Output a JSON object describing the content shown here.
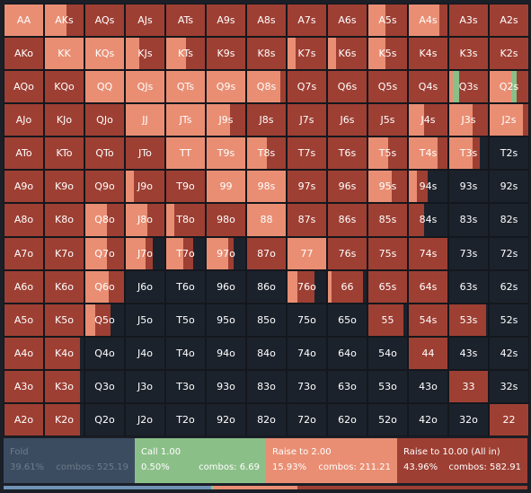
{
  "colors": {
    "fold": "#1c222c",
    "call": "#8bbf88",
    "raise_small": "#e98e73",
    "raise_allin": "#9e3f33"
  },
  "hands": [
    [
      "AA",
      "AKs",
      "AQs",
      "AJs",
      "ATs",
      "A9s",
      "A8s",
      "A7s",
      "A6s",
      "A5s",
      "A4s",
      "A3s",
      "A2s"
    ],
    [
      "AKo",
      "KK",
      "KQs",
      "KJs",
      "KTs",
      "K9s",
      "K8s",
      "K7s",
      "K6s",
      "K5s",
      "K4s",
      "K3s",
      "K2s"
    ],
    [
      "AQo",
      "KQo",
      "QQ",
      "QJs",
      "QTs",
      "Q9s",
      "Q8s",
      "Q7s",
      "Q6s",
      "Q5s",
      "Q4s",
      "Q3s",
      "Q2s"
    ],
    [
      "AJo",
      "KJo",
      "QJo",
      "JJ",
      "JTs",
      "J9s",
      "J8s",
      "J7s",
      "J6s",
      "J5s",
      "J4s",
      "J3s",
      "J2s"
    ],
    [
      "ATo",
      "KTo",
      "QTo",
      "JTo",
      "TT",
      "T9s",
      "T8s",
      "T7s",
      "T6s",
      "T5s",
      "T4s",
      "T3s",
      "T2s"
    ],
    [
      "A9o",
      "K9o",
      "Q9o",
      "J9o",
      "T9o",
      "99",
      "98s",
      "97s",
      "96s",
      "95s",
      "94s",
      "93s",
      "92s"
    ],
    [
      "A8o",
      "K8o",
      "Q8o",
      "J8o",
      "T8o",
      "98o",
      "88",
      "87s",
      "86s",
      "85s",
      "84s",
      "83s",
      "82s"
    ],
    [
      "A7o",
      "K7o",
      "Q7o",
      "J7o",
      "T7o",
      "97o",
      "87o",
      "77",
      "76s",
      "75s",
      "74s",
      "73s",
      "72s"
    ],
    [
      "A6o",
      "K6o",
      "Q6o",
      "J6o",
      "T6o",
      "96o",
      "86o",
      "76o",
      "66",
      "65s",
      "64s",
      "63s",
      "62s"
    ],
    [
      "A5o",
      "K5o",
      "Q5o",
      "J5o",
      "T5o",
      "95o",
      "85o",
      "75o",
      "65o",
      "55",
      "54s",
      "53s",
      "52s"
    ],
    [
      "A4o",
      "K4o",
      "Q4o",
      "J4o",
      "T4o",
      "94o",
      "84o",
      "74o",
      "64o",
      "54o",
      "44",
      "43s",
      "42s"
    ],
    [
      "A3o",
      "K3o",
      "Q3o",
      "J3o",
      "T3o",
      "93o",
      "83o",
      "73o",
      "63o",
      "53o",
      "43o",
      "33",
      "32s"
    ],
    [
      "A2o",
      "K2o",
      "Q2o",
      "J2o",
      "T2o",
      "92o",
      "82o",
      "72o",
      "62o",
      "52o",
      "42o",
      "32o",
      "22"
    ]
  ],
  "strategy_mix": [
    [
      [
        0,
        0,
        1,
        0
      ],
      [
        0,
        0,
        0.55,
        0.45
      ],
      [
        0,
        0,
        0,
        1
      ],
      [
        0,
        0,
        0,
        1
      ],
      [
        0,
        0,
        0,
        1
      ],
      [
        0,
        0,
        0,
        1
      ],
      [
        0,
        0,
        0,
        1
      ],
      [
        0,
        0,
        0,
        1
      ],
      [
        0,
        0,
        0,
        1
      ],
      [
        0,
        0,
        0.45,
        0.55
      ],
      [
        0,
        0,
        0.8,
        0.2
      ],
      [
        0,
        0,
        0,
        1
      ],
      [
        0,
        0,
        0,
        1
      ]
    ],
    [
      [
        0,
        0,
        0,
        1
      ],
      [
        0,
        0,
        1,
        0
      ],
      [
        0,
        0,
        1,
        0
      ],
      [
        0,
        0,
        0.35,
        0.65
      ],
      [
        0,
        0,
        0.5,
        0.5
      ],
      [
        0,
        0,
        0,
        1
      ],
      [
        0,
        0,
        0,
        1
      ],
      [
        0,
        0,
        0.2,
        0.8
      ],
      [
        0,
        0,
        0.2,
        0.8
      ],
      [
        0,
        0,
        0.45,
        0.55
      ],
      [
        0,
        0,
        0,
        1
      ],
      [
        0,
        0,
        0,
        1
      ],
      [
        0,
        0,
        0,
        1
      ]
    ],
    [
      [
        0,
        0,
        0,
        1
      ],
      [
        0,
        0,
        0,
        1
      ],
      [
        0,
        0,
        1,
        0
      ],
      [
        0,
        0,
        1,
        0
      ],
      [
        0,
        0,
        1,
        0
      ],
      [
        0,
        0,
        1,
        0
      ],
      [
        0,
        0,
        0.85,
        0.15
      ],
      [
        0,
        0,
        0,
        1
      ],
      [
        0,
        0,
        0,
        1
      ],
      [
        0,
        0,
        0,
        1
      ],
      [
        0,
        0,
        0,
        1
      ],
      [
        0,
        0.15,
        0.1,
        0.75
      ],
      [
        0,
        0.15,
        0.55,
        0.3
      ]
    ],
    [
      [
        0,
        0,
        0,
        1
      ],
      [
        0,
        0,
        0,
        1
      ],
      [
        0,
        0,
        0,
        1
      ],
      [
        0,
        0,
        1,
        0
      ],
      [
        0,
        0,
        1,
        0
      ],
      [
        0,
        0,
        0.6,
        0.4
      ],
      [
        0,
        0,
        0,
        1
      ],
      [
        0,
        0,
        0,
        1
      ],
      [
        0,
        0,
        0,
        1
      ],
      [
        0,
        0,
        0,
        1
      ],
      [
        0,
        0,
        0.4,
        0.6
      ],
      [
        0,
        0,
        0.6,
        0.4
      ],
      [
        0,
        0,
        0.85,
        0.15
      ]
    ],
    [
      [
        0,
        0,
        0,
        1
      ],
      [
        0,
        0,
        0,
        1
      ],
      [
        0,
        0,
        0,
        1
      ],
      [
        0,
        0,
        0,
        1
      ],
      [
        0,
        0,
        1,
        0
      ],
      [
        0,
        0,
        1,
        0
      ],
      [
        0,
        0,
        0.5,
        0.5
      ],
      [
        0,
        0,
        0,
        1
      ],
      [
        0,
        0,
        0,
        1
      ],
      [
        0,
        0,
        0.5,
        0.5
      ],
      [
        0,
        0,
        0.75,
        0.25
      ],
      [
        0.2,
        0,
        0.6,
        0.2
      ],
      [
        1,
        0,
        0,
        0
      ]
    ],
    [
      [
        0,
        0,
        0,
        1
      ],
      [
        0,
        0,
        0,
        1
      ],
      [
        0,
        0,
        0,
        1
      ],
      [
        0,
        0,
        0.2,
        0.8
      ],
      [
        0,
        0,
        0,
        1
      ],
      [
        0,
        0,
        1,
        0
      ],
      [
        0,
        0,
        1,
        0
      ],
      [
        0,
        0,
        0,
        1
      ],
      [
        0,
        0,
        0,
        1
      ],
      [
        0,
        0,
        0.6,
        0.4
      ],
      [
        0.5,
        0,
        0.2,
        0.3
      ],
      [
        1,
        0,
        0,
        0
      ],
      [
        1,
        0,
        0,
        0
      ]
    ],
    [
      [
        0,
        0,
        0,
        1
      ],
      [
        0,
        0,
        0,
        1
      ],
      [
        0,
        0,
        0.55,
        0.45
      ],
      [
        0,
        0,
        0.55,
        0.45
      ],
      [
        0,
        0,
        0.2,
        0.8
      ],
      [
        0,
        0,
        0,
        1
      ],
      [
        0,
        0,
        1,
        0
      ],
      [
        0,
        0,
        0,
        1
      ],
      [
        0,
        0,
        0,
        1
      ],
      [
        0,
        0,
        0,
        1
      ],
      [
        0.6,
        0,
        0,
        0.4
      ],
      [
        1,
        0,
        0,
        0
      ],
      [
        1,
        0,
        0,
        0
      ]
    ],
    [
      [
        0,
        0,
        0,
        1
      ],
      [
        0,
        0,
        0,
        1
      ],
      [
        0,
        0,
        0.55,
        0.45
      ],
      [
        0,
        0,
        0.5,
        0.2
      ],
      [
        0.3,
        0,
        0.45,
        0.25
      ],
      [
        0.3,
        0,
        0.55,
        0.15
      ],
      [
        0,
        0,
        0,
        1
      ],
      [
        0,
        0,
        1,
        0
      ],
      [
        0,
        0,
        0,
        1
      ],
      [
        0,
        0,
        0,
        1
      ],
      [
        0,
        0,
        0,
        1
      ],
      [
        1,
        0,
        0,
        0
      ],
      [
        1,
        0,
        0,
        0
      ]
    ],
    [
      [
        0,
        0,
        0,
        1
      ],
      [
        0,
        0,
        0,
        1
      ],
      [
        0,
        0,
        0.6,
        0.4
      ],
      [
        1,
        0,
        0,
        0
      ],
      [
        1,
        0,
        0,
        0
      ],
      [
        1,
        0,
        0,
        0
      ],
      [
        1,
        0,
        0,
        0
      ],
      [
        0.3,
        0,
        0.25,
        0.45
      ],
      [
        0.1,
        0,
        0.1,
        0.8
      ],
      [
        0,
        0,
        0,
        1
      ],
      [
        0,
        0,
        0,
        1
      ],
      [
        1,
        0,
        0,
        0
      ],
      [
        1,
        0,
        0,
        0
      ]
    ],
    [
      [
        0,
        0,
        0,
        1
      ],
      [
        0,
        0,
        0,
        1
      ],
      [
        0.35,
        0,
        0.25,
        0.4
      ],
      [
        1,
        0,
        0,
        0
      ],
      [
        1,
        0,
        0,
        0
      ],
      [
        1,
        0,
        0,
        0
      ],
      [
        1,
        0,
        0,
        0
      ],
      [
        1,
        0,
        0,
        0
      ],
      [
        1,
        0,
        0,
        0
      ],
      [
        0.1,
        0,
        0,
        0.9
      ],
      [
        0,
        0,
        0,
        1
      ],
      [
        0.05,
        0,
        0,
        0.95
      ],
      [
        1,
        0,
        0,
        0
      ]
    ],
    [
      [
        0,
        0,
        0,
        1
      ],
      [
        0.1,
        0,
        0,
        0.9
      ],
      [
        1,
        0,
        0,
        0
      ],
      [
        1,
        0,
        0,
        0
      ],
      [
        1,
        0,
        0,
        0
      ],
      [
        1,
        0,
        0,
        0
      ],
      [
        1,
        0,
        0,
        0
      ],
      [
        1,
        0,
        0,
        0
      ],
      [
        1,
        0,
        0,
        0
      ],
      [
        1,
        0,
        0,
        0
      ],
      [
        0,
        0,
        0,
        1
      ],
      [
        1,
        0,
        0,
        0
      ],
      [
        1,
        0,
        0,
        0
      ]
    ],
    [
      [
        0,
        0,
        0,
        1
      ],
      [
        0.1,
        0,
        0,
        0.9
      ],
      [
        1,
        0,
        0,
        0
      ],
      [
        1,
        0,
        0,
        0
      ],
      [
        1,
        0,
        0,
        0
      ],
      [
        1,
        0,
        0,
        0
      ],
      [
        1,
        0,
        0,
        0
      ],
      [
        1,
        0,
        0,
        0
      ],
      [
        1,
        0,
        0,
        0
      ],
      [
        1,
        0,
        0,
        0
      ],
      [
        1,
        0,
        0,
        0
      ],
      [
        0,
        0,
        0,
        1
      ],
      [
        1,
        0,
        0,
        0
      ]
    ],
    [
      [
        0,
        0,
        0,
        1
      ],
      [
        0.1,
        0,
        0,
        0.9
      ],
      [
        1,
        0,
        0,
        0
      ],
      [
        1,
        0,
        0,
        0
      ],
      [
        1,
        0,
        0,
        0
      ],
      [
        1,
        0,
        0,
        0
      ],
      [
        1,
        0,
        0,
        0
      ],
      [
        1,
        0,
        0,
        0
      ],
      [
        1,
        0,
        0,
        0
      ],
      [
        1,
        0,
        0,
        0
      ],
      [
        1,
        0,
        0,
        0
      ],
      [
        1,
        0,
        0,
        0
      ],
      [
        0,
        0,
        0,
        1
      ]
    ]
  ],
  "summary": {
    "fold": {
      "label": "Fold",
      "pct": "39.61%",
      "combos": "combos: 525.19",
      "color": "#3b4c61"
    },
    "call": {
      "label": "Call 1.00",
      "pct": "0.50%",
      "combos": "combos: 6.69",
      "color": "#8bbf88"
    },
    "raise": {
      "label": "Raise to 2.00",
      "pct": "15.93%",
      "combos": "combos: 211.21",
      "color": "#e98e73"
    },
    "allin": {
      "label": "Raise to 10.00 (All in)",
      "pct": "43.96%",
      "combos": "combos: 582.91",
      "color": "#9e3f33"
    }
  },
  "freq_bar": [
    {
      "action": "fold",
      "value": 0.3961,
      "color": "#6f93b5"
    },
    {
      "action": "call",
      "value": 0.005,
      "color": "#8bbf88"
    },
    {
      "action": "raise",
      "value": 0.1593,
      "color": "#e98e73"
    },
    {
      "action": "allin",
      "value": 0.4396,
      "color": "#9e3f33"
    }
  ]
}
